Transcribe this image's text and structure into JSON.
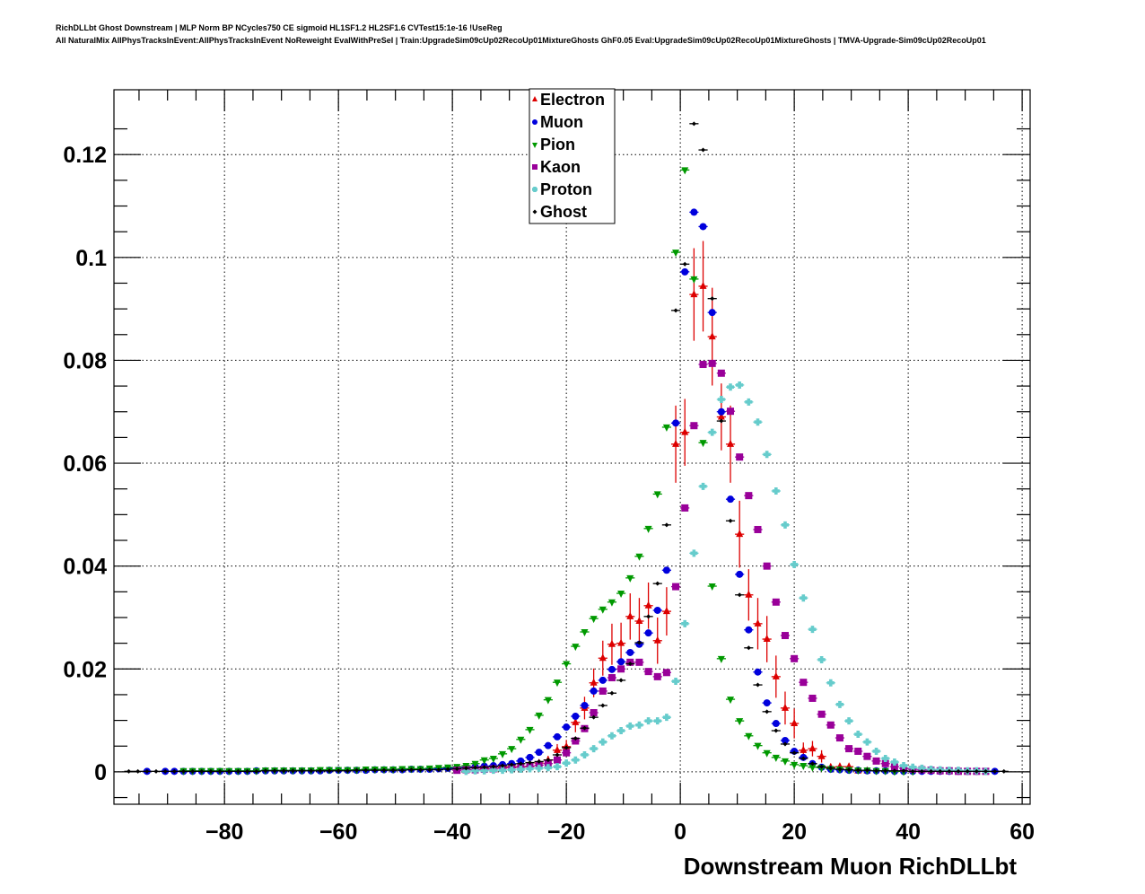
{
  "chart_data": {
    "type": "scatter",
    "title_lines": [
      "RichDLLbt Ghost Downstream | MLP Norm BP NCycles750 CE sigmoid HL1SF1.2 HL2SF1.6 CVTest15:1e-16 !UseReg",
      "All NaturalMix AllPhysTracksInEvent:AllPhysTracksInEvent NoReweight EvalWithPreSel | Train:UpgradeSim09cUp02RecoUp01MixtureGhosts GhF0.05 Eval:UpgradeSim09cUp02RecoUp01MixtureGhosts | TMVA-Upgrade-Sim09cUp02RecoUp01"
    ],
    "xlabel": "Downstream Muon RichDLLbt",
    "ylabel": "",
    "xlim": [
      -99.4,
      61.4
    ],
    "ylim": [
      -0.0063,
      0.1326
    ],
    "bin_width": 1.6,
    "grid": true,
    "legend_position": "top-center",
    "x_ticks": [
      -80,
      -60,
      -40,
      -20,
      0,
      20,
      40,
      60
    ],
    "x_tick_labels": [
      "−80",
      "−60",
      "−40",
      "−20",
      "0",
      "20",
      "40",
      "60"
    ],
    "y_ticks": [
      0,
      0.02,
      0.04,
      0.06,
      0.08,
      0.1,
      0.12
    ],
    "y_tick_labels": [
      "0",
      "0.02",
      "0.04",
      "0.06",
      "0.08",
      "0.1",
      "0.12"
    ],
    "series": [
      {
        "name": "Electron",
        "marker": "triangle-up",
        "color": "#dd0000",
        "x0": -36,
        "y": [
          0.0009,
          0.0007,
          0.001,
          0.0009,
          0.001,
          0.001,
          0.001,
          0.0017,
          0.0023,
          0.0042,
          0.0049,
          0.0096,
          0.0124,
          0.0173,
          0.0221,
          0.0248,
          0.025,
          0.0302,
          0.0293,
          0.0323,
          0.0255,
          0.0312,
          0.0637,
          0.066,
          0.0928,
          0.0944,
          0.0846,
          0.069,
          0.0637,
          0.0462,
          0.0344,
          0.0288,
          0.0258,
          0.0185,
          0.0124,
          0.0094,
          0.0042,
          0.0045,
          0.003,
          0.0009,
          0.001,
          0.001,
          0.0002,
          0.0002
        ],
        "err": [
          0.0005,
          0.0004,
          0.0005,
          0.0005,
          0.0005,
          0.0005,
          0.0005,
          0.0007,
          0.0008,
          0.0012,
          0.0013,
          0.0019,
          0.0022,
          0.0028,
          0.0034,
          0.004,
          0.004,
          0.0045,
          0.0045,
          0.0045,
          0.0045,
          0.0047,
          0.0075,
          0.0065,
          0.009,
          0.0088,
          0.0095,
          0.0065,
          0.0075,
          0.0065,
          0.005,
          0.005,
          0.0045,
          0.0041,
          0.0032,
          0.0029,
          0.0015,
          0.0015,
          0.0012,
          0.0006,
          0.0006,
          0.0006,
          0.0003,
          0.0003
        ]
      },
      {
        "name": "Muon",
        "marker": "circle",
        "color": "#0000dd",
        "x0": -93.6,
        "y": [
          0.0001,
          null,
          0.0001,
          0.0001,
          0.0001,
          0.0001,
          0.0001,
          0.0001,
          0.0001,
          0.0001,
          0.0001,
          0.0001,
          0.0002,
          0.0002,
          0.0002,
          0.0002,
          0.0002,
          0.0002,
          0.0002,
          0.0002,
          0.0003,
          0.0003,
          0.0003,
          0.0003,
          0.0003,
          0.0004,
          0.0004,
          0.0004,
          0.0004,
          0.0005,
          0.0005,
          0.0005,
          0.0006,
          0.0007,
          0.0008,
          0.0009,
          0.001,
          0.0011,
          0.0012,
          0.0014,
          0.0016,
          0.0021,
          0.0028,
          0.0038,
          0.0051,
          0.0068,
          0.0087,
          0.0108,
          0.0129,
          0.0157,
          0.0178,
          0.0199,
          0.0214,
          0.0232,
          0.0248,
          0.027,
          0.0314,
          0.0392,
          0.0678,
          0.0972,
          0.1088,
          0.106,
          0.0893,
          0.07,
          0.053,
          0.0384,
          0.0276,
          0.0194,
          0.0134,
          0.0094,
          0.0061,
          0.004,
          0.0028,
          0.0016,
          0.0009,
          0.0005,
          0.0004,
          0.0003,
          0.0003,
          0.0002,
          0.0002,
          0.0002,
          0.0001,
          0.0001,
          0.0001,
          0.0001,
          0.0001,
          0.0001,
          0.0001,
          0.0001,
          0.0001,
          0.0001,
          0.0001,
          0.0001
        ]
      },
      {
        "name": "Pion",
        "marker": "triangle-down",
        "color": "#009900",
        "x0": -87.2,
        "y": [
          0.0002,
          0.0002,
          0.0002,
          0.0002,
          0.0002,
          0.0002,
          0.0002,
          0.0002,
          0.0002,
          0.0003,
          0.0003,
          0.0003,
          0.0003,
          0.0003,
          0.0003,
          0.0004,
          0.0004,
          0.0004,
          0.0004,
          0.0004,
          0.0005,
          0.0005,
          0.0005,
          0.0005,
          0.0006,
          0.0006,
          0.0006,
          0.0007,
          0.0008,
          0.0009,
          0.001,
          0.0012,
          0.0016,
          0.0023,
          0.0026,
          0.0035,
          0.0045,
          0.0063,
          0.0082,
          0.011,
          0.014,
          0.0174,
          0.021,
          0.0244,
          0.0272,
          0.0298,
          0.0316,
          0.033,
          0.0347,
          0.0377,
          0.0419,
          0.0473,
          0.054,
          0.067,
          0.101,
          0.117,
          0.0958,
          0.064,
          0.0361,
          0.022,
          0.0141,
          0.0099,
          0.007,
          0.0051,
          0.0037,
          0.0028,
          0.0021,
          0.0014,
          0.0012,
          0.0009,
          0.0008,
          0.0006,
          0.0005,
          0.0004,
          0.0003,
          0.0003,
          0.0002,
          0.0002,
          0.0001,
          0.0001,
          0.0001
        ]
      },
      {
        "name": "Kaon",
        "marker": "square",
        "color": "#990099",
        "x0": -39.2,
        "y": [
          0.0003,
          0.0004,
          0.0004,
          0.0005,
          0.0006,
          0.0007,
          0.0008,
          0.0009,
          0.0011,
          0.0013,
          0.0016,
          0.0023,
          0.0037,
          0.006,
          0.0084,
          0.0115,
          0.0157,
          0.0183,
          0.02,
          0.0213,
          0.0213,
          0.0195,
          0.0185,
          0.0193,
          0.036,
          0.0513,
          0.0673,
          0.0792,
          0.0794,
          0.0775,
          0.0701,
          0.0612,
          0.0537,
          0.0471,
          0.04,
          0.033,
          0.0265,
          0.022,
          0.0174,
          0.0143,
          0.0112,
          0.0091,
          0.0066,
          0.0045,
          0.004,
          0.003,
          0.0021,
          0.0016,
          0.001,
          0.0007,
          0.0005,
          0.0004,
          0.0003,
          0.0002,
          0.0002,
          0.0001,
          0.0001,
          0.0001,
          0.0001
        ]
      },
      {
        "name": "Proton",
        "marker": "cross",
        "color": "#66cccc",
        "x0": -37.6,
        "y": [
          0.0001,
          0.0002,
          0.0002,
          0.0003,
          0.0003,
          0.0004,
          0.0005,
          0.0006,
          0.0007,
          0.0008,
          0.001,
          0.0017,
          0.0023,
          0.0033,
          0.0045,
          0.0058,
          0.007,
          0.008,
          0.0089,
          0.0091,
          0.0099,
          0.0099,
          0.0106,
          0.0176,
          0.0288,
          0.0425,
          0.0555,
          0.066,
          0.0724,
          0.0748,
          0.0752,
          0.0719,
          0.068,
          0.0617,
          0.0546,
          0.048,
          0.0403,
          0.0338,
          0.0277,
          0.0218,
          0.0173,
          0.0131,
          0.0099,
          0.0073,
          0.0058,
          0.004,
          0.0026,
          0.0019,
          0.0012,
          0.0009,
          0.0007,
          0.0005,
          0.0004,
          0.0003,
          0.0003,
          0.0002,
          0.0002,
          0.0001
        ]
      },
      {
        "name": "Ghost",
        "marker": "diamond",
        "color": "#000000",
        "x0": -96.8,
        "y": [
          0.0001,
          0.0001,
          0.0001,
          0.0001,
          0.0001,
          0.0001,
          0.0001,
          0.0001,
          0.0001,
          0.0001,
          0.0001,
          0.0001,
          0.0001,
          0.0001,
          0.0001,
          0.0002,
          0.0002,
          0.0002,
          0.0002,
          0.0002,
          0.0002,
          0.0002,
          0.0002,
          0.0002,
          0.0002,
          0.0003,
          0.0003,
          0.0003,
          0.0003,
          0.0003,
          0.0003,
          0.0004,
          0.0004,
          0.0004,
          0.0004,
          0.0005,
          0.0006,
          0.0007,
          0.0008,
          0.0009,
          0.001,
          0.0012,
          0.0014,
          0.0016,
          0.0018,
          0.002,
          0.0023,
          0.0033,
          0.0047,
          0.0065,
          0.0085,
          0.0106,
          0.0129,
          0.0153,
          0.0178,
          0.021,
          0.0251,
          0.0302,
          0.0366,
          0.048,
          0.0897,
          0.0987,
          0.126,
          0.1209,
          0.092,
          0.0682,
          0.0488,
          0.0344,
          0.0241,
          0.0169,
          0.0117,
          0.008,
          0.0054,
          0.0037,
          0.0026,
          0.0016,
          0.001,
          0.0007,
          0.0005,
          0.0004,
          0.0003,
          0.0003,
          0.0002,
          0.0002,
          0.0002,
          0.0002,
          0.0001,
          0.0001,
          0.0001,
          0.0001,
          0.0001,
          0.0001,
          0.0001,
          0.0001,
          0.0001,
          0.0001,
          0.0001
        ]
      }
    ]
  }
}
